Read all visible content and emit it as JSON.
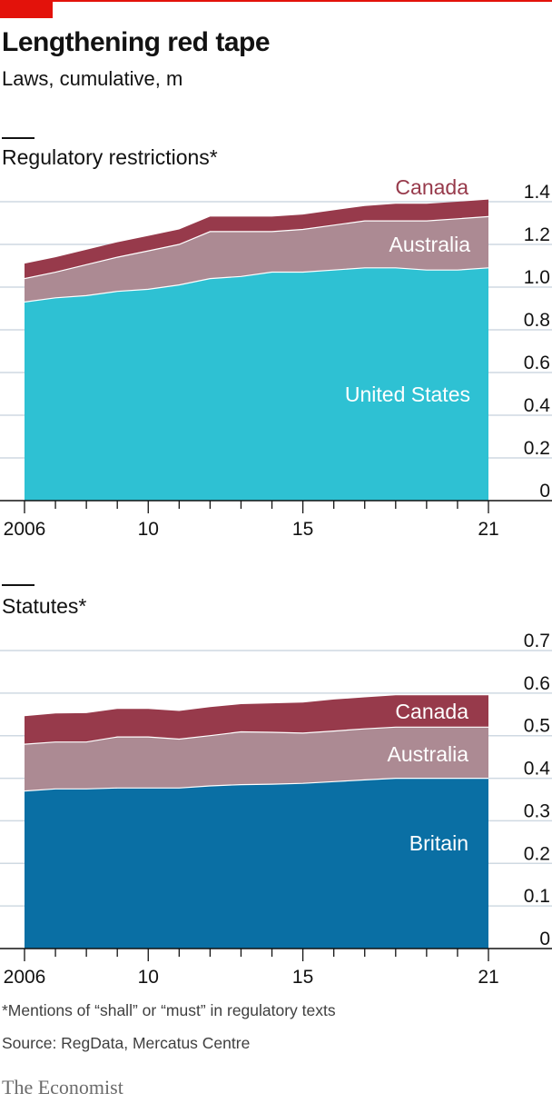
{
  "header": {
    "title": "Lengthening red tape",
    "subtitle": "Laws, cumulative, m"
  },
  "colors": {
    "united_states": "#2ec1d3",
    "britain": "#0a6fa4",
    "australia": "#ac8a93",
    "canada": "#973a4b",
    "accent": "#e3120b",
    "grid": "#cfd9e2"
  },
  "chart_data": [
    {
      "type": "area",
      "stacked": true,
      "title": "Regulatory restrictions*",
      "x": [
        2006,
        2007,
        2008,
        2009,
        2010,
        2011,
        2012,
        2013,
        2014,
        2015,
        2016,
        2017,
        2018,
        2019,
        2020,
        2021
      ],
      "xticks": [
        2006,
        2010,
        2015,
        2021
      ],
      "xtick_labels": [
        "2006",
        "10",
        "15",
        "21"
      ],
      "ylim": [
        0,
        1.4
      ],
      "yticks": [
        0,
        0.2,
        0.4,
        0.6,
        0.8,
        1.0,
        1.2,
        1.4
      ],
      "ytick_labels": [
        "0",
        "0.2",
        "0.4",
        "0.6",
        "0.8",
        "1.0",
        "1.2",
        "1.4"
      ],
      "grid": true,
      "series": [
        {
          "name": "United States",
          "color_key": "united_states",
          "values": [
            0.93,
            0.95,
            0.96,
            0.98,
            0.99,
            1.01,
            1.04,
            1.05,
            1.07,
            1.07,
            1.08,
            1.09,
            1.09,
            1.08,
            1.08,
            1.09
          ]
        },
        {
          "name": "Australia",
          "color_key": "australia",
          "values": [
            0.11,
            0.12,
            0.145,
            0.16,
            0.18,
            0.19,
            0.22,
            0.21,
            0.19,
            0.2,
            0.21,
            0.22,
            0.22,
            0.23,
            0.24,
            0.24
          ]
        },
        {
          "name": "Canada",
          "color_key": "canada",
          "values": [
            0.07,
            0.07,
            0.07,
            0.07,
            0.07,
            0.07,
            0.07,
            0.07,
            0.07,
            0.07,
            0.07,
            0.07,
            0.08,
            0.08,
            0.08,
            0.08
          ]
        }
      ]
    },
    {
      "type": "area",
      "stacked": true,
      "title": "Statutes*",
      "x": [
        2006,
        2007,
        2008,
        2009,
        2010,
        2011,
        2012,
        2013,
        2014,
        2015,
        2016,
        2017,
        2018,
        2019,
        2020,
        2021
      ],
      "xticks": [
        2006,
        2010,
        2015,
        2021
      ],
      "xtick_labels": [
        "2006",
        "10",
        "15",
        "21"
      ],
      "ylim": [
        0,
        0.7
      ],
      "yticks": [
        0,
        0.1,
        0.2,
        0.3,
        0.4,
        0.5,
        0.6,
        0.7
      ],
      "ytick_labels": [
        "0",
        "0.1",
        "0.2",
        "0.3",
        "0.4",
        "0.5",
        "0.6",
        "0.7"
      ],
      "grid": true,
      "series": [
        {
          "name": "Britain",
          "color_key": "britain",
          "values": [
            0.37,
            0.375,
            0.375,
            0.377,
            0.377,
            0.377,
            0.382,
            0.385,
            0.386,
            0.388,
            0.392,
            0.396,
            0.4,
            0.4,
            0.4,
            0.4
          ]
        },
        {
          "name": "Australia",
          "color_key": "australia",
          "values": [
            0.11,
            0.11,
            0.11,
            0.12,
            0.12,
            0.115,
            0.118,
            0.124,
            0.122,
            0.118,
            0.119,
            0.12,
            0.12,
            0.12,
            0.12,
            0.12
          ]
        },
        {
          "name": "Canada",
          "color_key": "canada",
          "values": [
            0.066,
            0.067,
            0.068,
            0.066,
            0.066,
            0.066,
            0.067,
            0.065,
            0.068,
            0.072,
            0.074,
            0.074,
            0.075,
            0.075,
            0.075,
            0.075
          ]
        }
      ]
    }
  ],
  "footer": {
    "footnote": "*Mentions of “shall” or “must” in regulatory texts",
    "source": "Source: RegData, Mercatus Centre",
    "logo": "The Economist"
  }
}
